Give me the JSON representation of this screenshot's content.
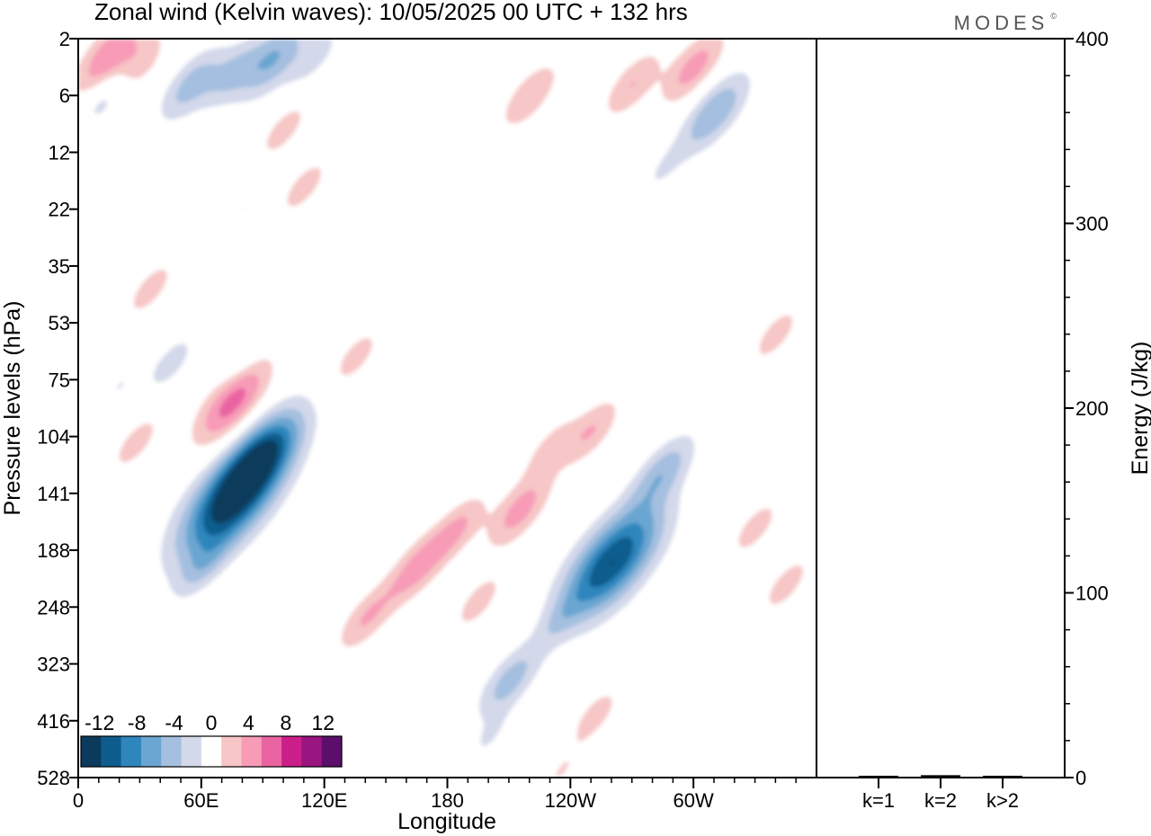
{
  "chart_data": [
    {
      "type": "heatmap",
      "title": "Zonal wind (Kelvin waves):  10/05/2025  00 UTC  + 132 hrs",
      "brand": "MODES",
      "brand_mark": "©",
      "xlabel": "Longitude",
      "ylabel": "Pressure levels (hPa)",
      "x_ticks": [
        "0",
        "60E",
        "120E",
        "180",
        "120W",
        "60W"
      ],
      "x_tick_values": [
        0,
        60,
        120,
        180,
        240,
        300
      ],
      "xlim": [
        0,
        360
      ],
      "y_ticks": [
        "2",
        "6",
        "12",
        "22",
        "35",
        "53",
        "75",
        "104",
        "141",
        "188",
        "248",
        "323",
        "416",
        "528"
      ],
      "y_scale": "level-index",
      "colorbar": {
        "labels": [
          "-12",
          "-8",
          "-4",
          "0",
          "4",
          "8",
          "12"
        ],
        "levels": [
          -14,
          -12,
          -10,
          -8,
          -6,
          -4,
          -2,
          2,
          4,
          6,
          8,
          10,
          12,
          14
        ],
        "colors": [
          "#0b3a5c",
          "#0e5d8e",
          "#2f86bd",
          "#6aa6d1",
          "#a4bfdf",
          "#d3d8ea",
          "#ffffff",
          "#f7c6c6",
          "#f79bb7",
          "#ea64a1",
          "#cc1e8a",
          "#99157f",
          "#5c0e6c"
        ]
      },
      "anomalies": [
        {
          "lon": 15,
          "lev": 0.3,
          "value": 6
        },
        {
          "lon": 28,
          "lev": 0.5,
          "value": 4
        },
        {
          "lon": 15,
          "lev": 0.95,
          "value": -4
        },
        {
          "lon": 55,
          "lev": 0.8,
          "value": -5
        },
        {
          "lon": 75,
          "lev": 0.6,
          "value": -4
        },
        {
          "lon": 95,
          "lev": 0.35,
          "value": -6
        },
        {
          "lon": 115,
          "lev": 0.3,
          "value": -3
        },
        {
          "lon": 100,
          "lev": 1.6,
          "value": 3
        },
        {
          "lon": 110,
          "lev": 2.6,
          "value": 3
        },
        {
          "lon": 80,
          "lev": 3.0,
          "value": 2
        },
        {
          "lon": 220,
          "lev": 1.0,
          "value": 4
        },
        {
          "lon": 175,
          "lev": 0.9,
          "value": 2
        },
        {
          "lon": 270,
          "lev": 0.8,
          "value": 4
        },
        {
          "lon": 300,
          "lev": 0.5,
          "value": 5
        },
        {
          "lon": 310,
          "lev": 1.3,
          "value": -6
        },
        {
          "lon": 285,
          "lev": 2.3,
          "value": -2
        },
        {
          "lon": 35,
          "lev": 4.4,
          "value": 3
        },
        {
          "lon": 45,
          "lev": 5.7,
          "value": -3
        },
        {
          "lon": 20,
          "lev": 6.1,
          "value": -2
        },
        {
          "lon": 80,
          "lev": 5.6,
          "value": -2
        },
        {
          "lon": 75,
          "lev": 6.4,
          "value": 7
        },
        {
          "lon": 28,
          "lev": 7.1,
          "value": 3
        },
        {
          "lon": 75,
          "lev": 8.1,
          "value": -13
        },
        {
          "lon": 90,
          "lev": 7.3,
          "value": -8
        },
        {
          "lon": 60,
          "lev": 9.3,
          "value": -3
        },
        {
          "lon": 135,
          "lev": 5.6,
          "value": 3
        },
        {
          "lon": 165,
          "lev": 9.3,
          "value": 5
        },
        {
          "lon": 140,
          "lev": 10.2,
          "value": 4
        },
        {
          "lon": 185,
          "lev": 8.6,
          "value": 4
        },
        {
          "lon": 215,
          "lev": 8.3,
          "value": 5
        },
        {
          "lon": 195,
          "lev": 9.9,
          "value": 3
        },
        {
          "lon": 250,
          "lev": 6.9,
          "value": 4
        },
        {
          "lon": 230,
          "lev": 7.2,
          "value": 3
        },
        {
          "lon": 260,
          "lev": 9.2,
          "value": -12
        },
        {
          "lon": 285,
          "lev": 7.6,
          "value": -5
        },
        {
          "lon": 210,
          "lev": 11.3,
          "value": -5
        },
        {
          "lon": 235,
          "lev": 10.2,
          "value": -2
        },
        {
          "lon": 340,
          "lev": 5.2,
          "value": 3
        },
        {
          "lon": 330,
          "lev": 8.6,
          "value": 3
        },
        {
          "lon": 345,
          "lev": 9.6,
          "value": 3
        },
        {
          "lon": 252,
          "lev": 11.9,
          "value": 3
        },
        {
          "lon": 235,
          "lev": 12.9,
          "value": 2
        },
        {
          "lon": 140,
          "lev": 12.6,
          "value": -2
        },
        {
          "lon": 200,
          "lev": 12.3,
          "value": -2
        }
      ]
    },
    {
      "type": "bar",
      "categories": [
        "k=1",
        "k=2",
        "k>2"
      ],
      "values": [
        0.5,
        0.8,
        0.5
      ],
      "ylabel": "Energy (J/kg)",
      "y_ticks": [
        "0",
        "100",
        "200",
        "300",
        "400"
      ],
      "ylim": [
        0,
        400
      ]
    }
  ]
}
